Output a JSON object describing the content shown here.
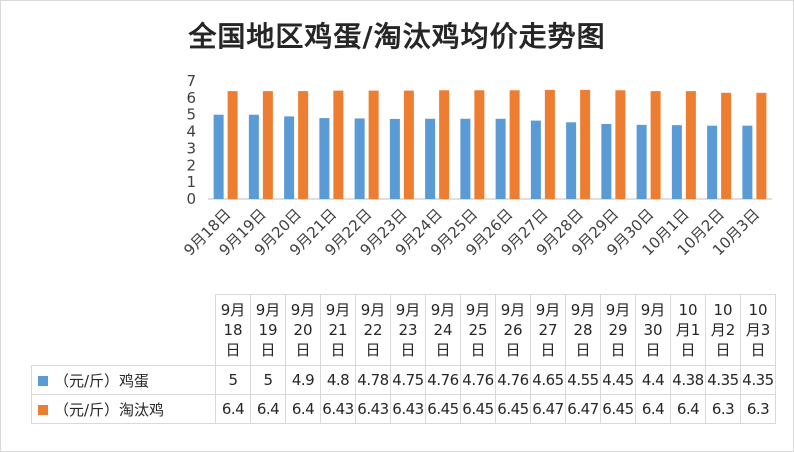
{
  "chart_data": {
    "type": "bar",
    "title": "全国地区鸡蛋/淘汰鸡均价走势图",
    "categories": [
      "9月18日",
      "9月19日",
      "9月20日",
      "9月21日",
      "9月22日",
      "9月23日",
      "9月24日",
      "9月25日",
      "9月26日",
      "9月27日",
      "9月28日",
      "9月29日",
      "9月30日",
      "10月1日",
      "10月2日",
      "10月3日"
    ],
    "series": [
      {
        "name": "（元/斤）鸡蛋",
        "color": "#5b9bd5",
        "values": [
          5,
          5,
          4.9,
          4.8,
          4.78,
          4.75,
          4.76,
          4.76,
          4.76,
          4.65,
          4.55,
          4.45,
          4.4,
          4.38,
          4.35,
          4.35
        ]
      },
      {
        "name": "（元/斤）淘汰鸡",
        "color": "#ed7d31",
        "values": [
          6.4,
          6.4,
          6.4,
          6.43,
          6.43,
          6.43,
          6.45,
          6.45,
          6.45,
          6.47,
          6.47,
          6.45,
          6.4,
          6.4,
          6.3,
          6.3
        ]
      }
    ],
    "ylim": [
      0,
      7
    ],
    "yticks": [
      0,
      1,
      2,
      3,
      4,
      5,
      6,
      7
    ],
    "grid": false,
    "legend": "data-table"
  },
  "table": {
    "category_labels": [
      [
        "9月",
        "18",
        "日"
      ],
      [
        "9月",
        "19",
        "日"
      ],
      [
        "9月",
        "20",
        "日"
      ],
      [
        "9月",
        "21",
        "日"
      ],
      [
        "9月",
        "22",
        "日"
      ],
      [
        "9月",
        "23",
        "日"
      ],
      [
        "9月",
        "24",
        "日"
      ],
      [
        "9月",
        "25",
        "日"
      ],
      [
        "9月",
        "26",
        "日"
      ],
      [
        "9月",
        "27",
        "日"
      ],
      [
        "9月",
        "28",
        "日"
      ],
      [
        "9月",
        "29",
        "日"
      ],
      [
        "9月",
        "30",
        "日"
      ],
      [
        "10",
        "月1",
        "日"
      ],
      [
        "10",
        "月2",
        "日"
      ],
      [
        "10",
        "月3",
        "日"
      ]
    ],
    "rows": [
      {
        "name": "（元/斤）鸡蛋",
        "color": "#5b9bd5",
        "values": [
          "5",
          "5",
          "4.9",
          "4.8",
          "4.78",
          "4.75",
          "4.76",
          "4.76",
          "4.76",
          "4.65",
          "4.55",
          "4.45",
          "4.4",
          "4.38",
          "4.35",
          "4.35"
        ]
      },
      {
        "name": "（元/斤）淘汰鸡",
        "color": "#ed7d31",
        "values": [
          "6.4",
          "6.4",
          "6.4",
          "6.43",
          "6.43",
          "6.43",
          "6.45",
          "6.45",
          "6.45",
          "6.47",
          "6.47",
          "6.45",
          "6.4",
          "6.4",
          "6.3",
          "6.3"
        ]
      }
    ]
  }
}
